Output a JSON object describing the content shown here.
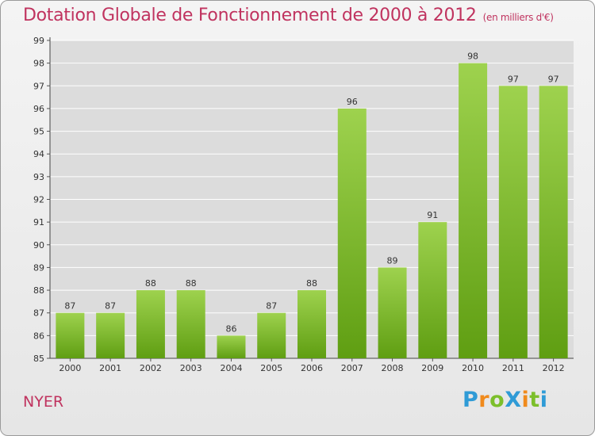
{
  "title": "Dotation Globale de Fonctionnement de 2000 à 2012",
  "subtitle": "(en milliers d'€)",
  "commune": "NYER",
  "logo": {
    "text": "ProXiti",
    "letters": [
      {
        "ch": "P",
        "color": "#2f9bd6"
      },
      {
        "ch": "r",
        "color": "#f08a1c"
      },
      {
        "ch": "o",
        "color": "#7cbf2b"
      },
      {
        "ch": "X",
        "color": "#2f9bd6"
      },
      {
        "ch": "i",
        "color": "#f08a1c"
      },
      {
        "ch": "t",
        "color": "#7cbf2b"
      },
      {
        "ch": "i",
        "color": "#2f9bd6"
      }
    ]
  },
  "colors": {
    "title": "#c0335f",
    "bar_top": "#9ed24e",
    "bar_bottom": "#5f9e12",
    "plot_bg": "#dcdcdc",
    "grid": "#ffffff"
  },
  "chart_data": {
    "type": "bar",
    "categories": [
      "2000",
      "2001",
      "2002",
      "2003",
      "2004",
      "2005",
      "2006",
      "2007",
      "2008",
      "2009",
      "2010",
      "2011",
      "2012"
    ],
    "values": [
      87,
      87,
      88,
      88,
      86,
      87,
      88,
      96,
      89,
      91,
      98,
      97,
      97
    ],
    "value_labels": [
      "87",
      "87",
      "88",
      "88",
      "86",
      "87",
      "88",
      "96",
      "89",
      "91",
      "98",
      "97",
      "97"
    ],
    "ylim": [
      85,
      99
    ],
    "yticks": [
      "85",
      "86",
      "87",
      "88",
      "89",
      "90",
      "91",
      "92",
      "93",
      "94",
      "95",
      "96",
      "97",
      "98",
      "99"
    ],
    "grid": true,
    "legend": "none"
  }
}
